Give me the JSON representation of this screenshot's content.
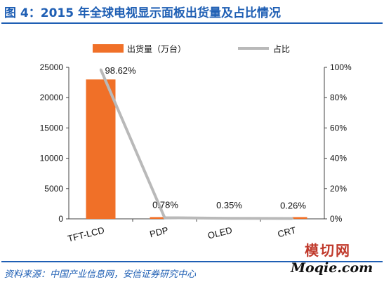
{
  "header": {
    "title": "图 4：2015 年全球电视显示面板出货量及占比情况"
  },
  "footer": {
    "source": "资料来源：中国产业信息网，安信证券研究中心"
  },
  "watermark": {
    "name": "模切网",
    "url": "Moqie.com"
  },
  "colors": {
    "bar": "#f07028",
    "line": "#b9b9b9",
    "accent": "#1f5fb4"
  },
  "chart_data": {
    "type": "bar",
    "categories": [
      "TFT-LCD",
      "PDP",
      "OLED",
      "CRT"
    ],
    "series": [
      {
        "name": "出货量（万台）",
        "type": "bar",
        "axis": "left",
        "values": [
          23000,
          182,
          82,
          61
        ]
      },
      {
        "name": "占比",
        "type": "line",
        "axis": "right",
        "values": [
          98.62,
          0.78,
          0.35,
          0.26
        ]
      }
    ],
    "data_labels": [
      "98.62%",
      "0.78%",
      "0.35%",
      "0.26%"
    ],
    "left_axis": {
      "ylim": [
        0,
        25000
      ],
      "ticks": [
        "0",
        "5000",
        "10000",
        "15000",
        "20000",
        "25000"
      ]
    },
    "right_axis": {
      "ylim": [
        0,
        100
      ],
      "ticks": [
        "0%",
        "20%",
        "40%",
        "60%",
        "80%",
        "100%"
      ]
    },
    "grid": false,
    "legend_position": "top"
  }
}
